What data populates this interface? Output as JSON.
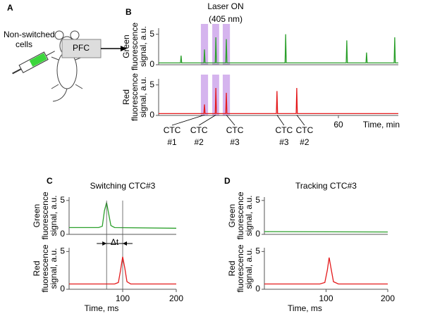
{
  "panels": [
    "A",
    "B",
    "C",
    "D"
  ],
  "diagram": {
    "cells_label": [
      "Non-switched",
      "cells"
    ],
    "region": "PFC"
  },
  "chart_data": [
    {
      "type": "line",
      "title": [
        "Laser ON",
        "(405 nm)"
      ],
      "ylabel": [
        "Green",
        "fluorescence",
        "signal, a.u."
      ],
      "ylim": [
        0,
        6
      ],
      "yticks": [
        0,
        5
      ],
      "xlim": [
        0,
        80
      ],
      "color": "#2ca02c",
      "highlights": [
        [
          14.1,
          16.5
        ],
        [
          17.9,
          20.2
        ],
        [
          21.4,
          23.8
        ]
      ],
      "highlight_color": "#c79be8",
      "x": [
        0,
        7.3,
        7.5,
        7.7,
        15.1,
        15.3,
        15.5,
        18.9,
        19.1,
        19.3,
        22.4,
        22.6,
        22.8,
        42.2,
        42.4,
        42.6,
        62.6,
        62.8,
        63.0,
        69.2,
        69.4,
        69.6,
        78.6,
        78.8,
        79.0,
        80
      ],
      "values": [
        0.3,
        0.3,
        1.5,
        0.3,
        0.3,
        2.5,
        0.3,
        0.3,
        4.5,
        0.3,
        0.3,
        4.2,
        0.3,
        0.3,
        5,
        0.3,
        0.3,
        4,
        0.3,
        0.3,
        2,
        0.3,
        0.3,
        4.5,
        0.3,
        0.3
      ]
    },
    {
      "type": "line",
      "ylabel": [
        "Red",
        "fluorescence",
        "signal, a.u."
      ],
      "ylim": [
        0,
        6
      ],
      "yticks": [
        0,
        5
      ],
      "xlim": [
        0,
        80
      ],
      "xticks": [
        60
      ],
      "xlabel": "Time, min",
      "color": "#e41a1c",
      "highlights": [
        [
          14.1,
          16.5
        ],
        [
          17.9,
          20.2
        ],
        [
          21.4,
          23.8
        ]
      ],
      "highlight_color": "#c79be8",
      "annotations": [
        {
          "lines": [
            "CTC",
            "#1"
          ],
          "x": 15.3
        },
        {
          "lines": [
            "CTC",
            "#2"
          ],
          "x": 19.1
        },
        {
          "lines": [
            "CTC",
            "#3"
          ],
          "x": 22.6
        },
        {
          "lines": [
            "CTC",
            "#3"
          ],
          "x": 39.5
        },
        {
          "lines": [
            "CTC",
            "#2"
          ],
          "x": 46.1
        }
      ],
      "x": [
        0,
        15.1,
        15.3,
        15.5,
        18.9,
        19.1,
        19.3,
        22.4,
        22.6,
        22.8,
        39.3,
        39.5,
        39.7,
        45.9,
        46.1,
        46.3,
        80
      ],
      "values": [
        0.3,
        0.3,
        1.8,
        0.3,
        0.3,
        4.5,
        0.3,
        0.3,
        3.7,
        0.3,
        0.3,
        4,
        0.3,
        0.3,
        4.5,
        0.3,
        0.3
      ]
    },
    {
      "type": "line",
      "title": [
        "Switching CTC#3"
      ],
      "ylabel": [
        "Green",
        "fluorescence",
        "signal, a.u."
      ],
      "ylim": [
        0,
        5.5
      ],
      "yticks": [
        0,
        5
      ],
      "xlim": [
        0,
        200
      ],
      "color": "#2ca02c",
      "markers": [
        70,
        100
      ],
      "marker_label": "Δt",
      "x": [
        0,
        55,
        62,
        66,
        70,
        74,
        78,
        85,
        200
      ],
      "values": [
        1,
        1,
        1.2,
        3.5,
        4.7,
        3,
        1.3,
        1,
        0.9
      ]
    },
    {
      "type": "line",
      "ylabel": [
        "Red",
        "fluorescence",
        "signal, a.u."
      ],
      "ylim": [
        0,
        5.5
      ],
      "yticks": [
        0,
        5
      ],
      "xlim": [
        0,
        200
      ],
      "xticks": [
        100,
        200
      ],
      "xlabel": "Time, ms",
      "color": "#e41a1c",
      "markers": [
        70,
        100
      ],
      "x": [
        0,
        85,
        92,
        96,
        100,
        104,
        108,
        115,
        200
      ],
      "values": [
        0.7,
        0.7,
        0.9,
        2.5,
        4.3,
        2.8,
        1,
        0.7,
        0.7
      ]
    },
    {
      "type": "line",
      "title": [
        "Tracking CTC#3"
      ],
      "ylabel": [
        "Green",
        "fluorescence",
        "signal, a.u."
      ],
      "ylim": [
        0,
        5.5
      ],
      "yticks": [
        0,
        5
      ],
      "xlim": [
        0,
        200
      ],
      "color": "#2ca02c",
      "x": [
        0,
        200
      ],
      "values": [
        0.4,
        0.35
      ]
    },
    {
      "type": "line",
      "ylabel": [
        "Red",
        "fluorescence",
        "signal, a.u."
      ],
      "ylim": [
        0,
        5.5
      ],
      "yticks": [
        0,
        5
      ],
      "xlim": [
        0,
        200
      ],
      "xticks": [
        100,
        200
      ],
      "xlabel": "Time, ms",
      "color": "#e41a1c",
      "x": [
        0,
        90,
        98,
        102,
        105,
        108,
        112,
        120,
        200
      ],
      "values": [
        0.7,
        0.7,
        0.9,
        2.5,
        4.2,
        2.8,
        1,
        0.7,
        0.7
      ]
    }
  ]
}
